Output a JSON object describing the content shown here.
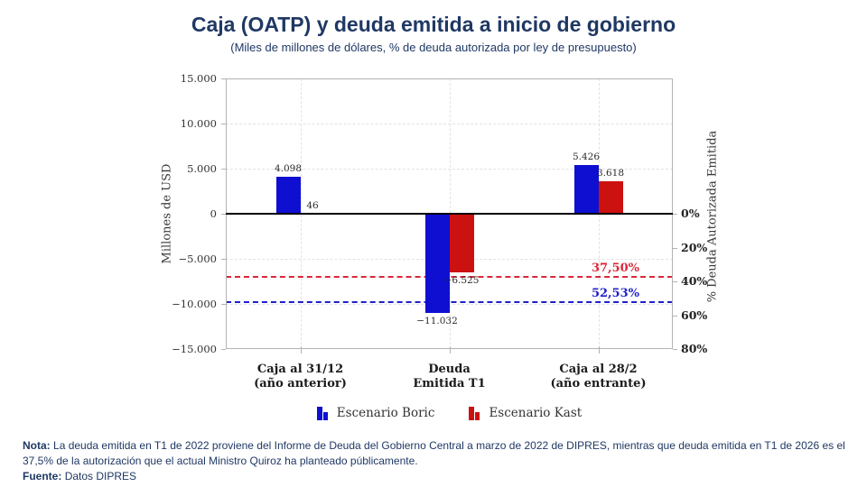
{
  "header": {
    "title": "Caja (OATP) y deuda emitida a inicio de gobierno",
    "subtitle": "(Miles de millones de dólares, % de deuda autorizada por ley de presupuesto)"
  },
  "footer": {
    "nota_label": "Nota:",
    "nota_text": "La deuda emitida en T1 de 2022 proviene del Informe de Deuda del Gobierno Central a marzo de 2022 de DIPRES, mientras que deuda emitida en T1 de 2026 es el 37,5% de la autorización que el actual Ministro Quiroz ha planteado públicamente.",
    "fuente_label": "Fuente:",
    "fuente_text": "Datos DIPRES"
  },
  "colors": {
    "title_navy": "#1f3864",
    "boric_blue": "#0f0fd2",
    "kast_red": "#cc1111",
    "ref_red": "#dc2638",
    "ref_blue": "#2020cc",
    "frame_gray": "#b3b3b3",
    "grid_gray": "#e2e2e2"
  },
  "chart_data": {
    "type": "bar",
    "title": "Caja (OATP) y deuda emitida a inicio de gobierno",
    "subtitle": "(Miles de millones de dólares, % de deuda autorizada por ley de presupuesto)",
    "ylabel": "Millones de USD",
    "y2label": "% Deuda Autorizada Emitida",
    "ylim": [
      -15000,
      15000
    ],
    "y2lim": [
      0,
      80
    ],
    "y2_value_per_percent": -187.5,
    "grid": true,
    "legend_position": "bottom",
    "categories": [
      {
        "line1": "Caja al 31/12",
        "line2": "(año anterior)"
      },
      {
        "line1": "Deuda",
        "line2": "Emitida T1"
      },
      {
        "line1": "Caja al 28/2",
        "line2": "(año entrante)"
      }
    ],
    "series": [
      {
        "name": "Escenario Boric",
        "color": "#0f0fd2",
        "values": [
          4098,
          -11032,
          5426
        ],
        "labels": [
          "4.098",
          "−11.032",
          "5.426"
        ]
      },
      {
        "name": "Escenario Kast",
        "color": "#cc1111",
        "values": [
          46,
          -6525,
          3618
        ],
        "labels": [
          "46",
          "−6.525",
          "3.618"
        ]
      }
    ],
    "yticks": [
      {
        "value": 15000,
        "label": "15.000"
      },
      {
        "value": 10000,
        "label": "10.000"
      },
      {
        "value": 5000,
        "label": "5.000"
      },
      {
        "value": 0,
        "label": "0"
      },
      {
        "value": -5000,
        "label": "−5.000"
      },
      {
        "value": -10000,
        "label": "−10.000"
      },
      {
        "value": -15000,
        "label": "−15.000"
      }
    ],
    "y2ticks": [
      {
        "percent": 0,
        "label": "0%"
      },
      {
        "percent": 20,
        "label": "20%"
      },
      {
        "percent": 40,
        "label": "40%"
      },
      {
        "percent": 60,
        "label": "60%"
      },
      {
        "percent": 80,
        "label": "80%"
      }
    ],
    "ref_lines": [
      {
        "percent": 37.5,
        "label": "37,50%",
        "color": "#dc2638"
      },
      {
        "percent": 52.53,
        "label": "52,53%",
        "color": "#2020cc"
      }
    ]
  }
}
